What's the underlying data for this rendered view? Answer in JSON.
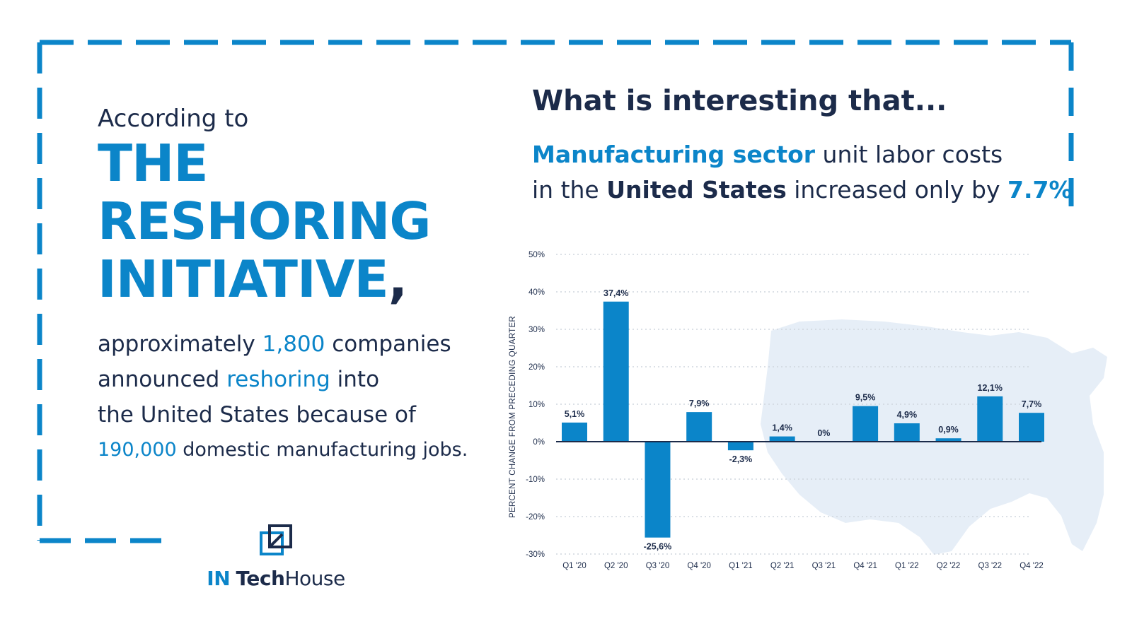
{
  "left": {
    "intro": "According to",
    "headline_lines": [
      "THE",
      "RESHORING",
      "INITIATIVE"
    ],
    "headline_comma": ",",
    "body": {
      "l1_pre": "approximately ",
      "l1_num": "1,800",
      "l1_post": " companies",
      "l2_pre": "announced ",
      "l2_hl": "reshoring",
      "l2_post": " into",
      "l3": "the United States because of",
      "l4_num": "190,000",
      "l4_post": " domestic manufacturing jobs."
    }
  },
  "logo": {
    "in": "IN",
    "tech": "Tech",
    "house": "House"
  },
  "right": {
    "title": "What is interesting that...",
    "sub_blue": "Manufacturing sector",
    "sub_rest1": " unit labor costs",
    "sub_pre2": "in the ",
    "sub_strong": "United States",
    "sub_mid2": " increased only by ",
    "sub_value": "7.7%"
  },
  "colors": {
    "accent": "#0b85c9",
    "dark": "#1c2b4a",
    "map": "#e6eef7"
  },
  "chart_data": {
    "type": "bar",
    "title": "",
    "xlabel": "",
    "ylabel": "PERCENT CHANGE FROM PRECEDING QUARTER",
    "ylim": [
      -30,
      50
    ],
    "yticks": [
      -30,
      -20,
      -10,
      0,
      10,
      20,
      30,
      40,
      50
    ],
    "ytick_labels": [
      "-30%",
      "-20%",
      "-10%",
      "0%",
      "10%",
      "20%",
      "30%",
      "40%",
      "50%"
    ],
    "grid": true,
    "categories": [
      "Q1 '20",
      "Q2 '20",
      "Q3 '20",
      "Q4 '20",
      "Q1 '21",
      "Q2 '21",
      "Q3 '21",
      "Q4 '21",
      "Q1 '22",
      "Q2 '22",
      "Q3 '22",
      "Q4 '22"
    ],
    "values": [
      5.1,
      37.4,
      -25.6,
      7.9,
      -2.3,
      1.4,
      0,
      9.5,
      4.9,
      0.9,
      12.1,
      7.7
    ],
    "labels": [
      "5,1%",
      "37,4%",
      "-25,6%",
      "7,9%",
      "-2,3%",
      "1,4%",
      "0%",
      "9,5%",
      "4,9%",
      "0,9%",
      "12,1%",
      "7,7%"
    ],
    "bar_color": "#0b85c9"
  }
}
